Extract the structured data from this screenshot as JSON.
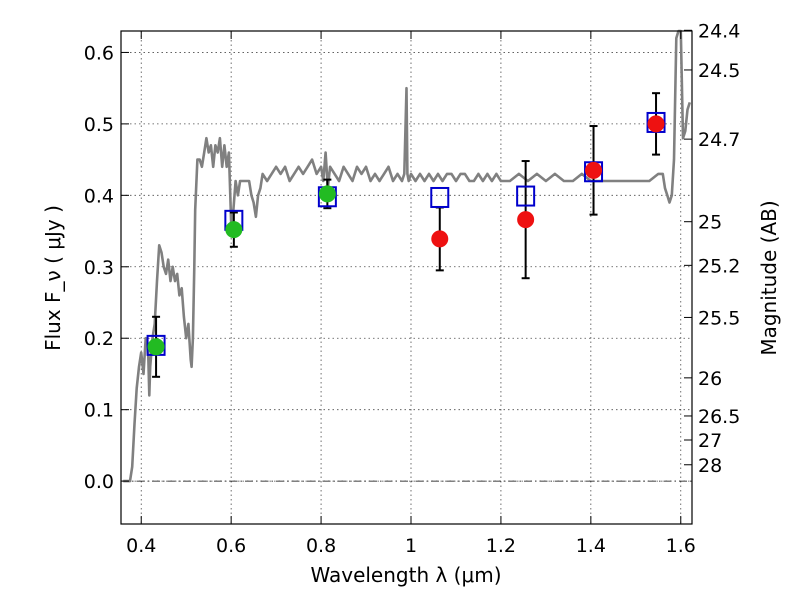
{
  "chart_data": {
    "type": "scatter",
    "title": "",
    "xlabel": "Wavelength  λ (μm)",
    "ylabel": "Flux  F_ν  ( μJy )",
    "ylabel_right": "Magnitude (AB)",
    "xlim": [
      0.355,
      1.625
    ],
    "ylim": [
      -0.06,
      0.63
    ],
    "grid": true,
    "x_ticks": [
      {
        "value": 0.4,
        "label": "0.4"
      },
      {
        "value": 0.6,
        "label": "0.6"
      },
      {
        "value": 0.8,
        "label": "0.8"
      },
      {
        "value": 1.0,
        "label": "1"
      },
      {
        "value": 1.2,
        "label": "1.2"
      },
      {
        "value": 1.4,
        "label": "1.4"
      },
      {
        "value": 1.6,
        "label": "1.6"
      }
    ],
    "y_ticks": [
      {
        "value": 0.0,
        "label": "0.0"
      },
      {
        "value": 0.1,
        "label": "0.1"
      },
      {
        "value": 0.2,
        "label": "0.2"
      },
      {
        "value": 0.3,
        "label": "0.3"
      },
      {
        "value": 0.4,
        "label": "0.4"
      },
      {
        "value": 0.5,
        "label": "0.5"
      },
      {
        "value": 0.6,
        "label": "0.6"
      }
    ],
    "right_ticks": [
      {
        "mag": 24.4,
        "label": "24.4"
      },
      {
        "mag": 24.5,
        "label": "24.5"
      },
      {
        "mag": 24.7,
        "label": "24.7"
      },
      {
        "mag": 25,
        "label": "25"
      },
      {
        "mag": 25.2,
        "label": "25.2"
      },
      {
        "mag": 25.5,
        "label": "25.5"
      },
      {
        "mag": 26,
        "label": "26"
      },
      {
        "mag": 26.5,
        "label": "26.5"
      },
      {
        "mag": 27,
        "label": "27"
      },
      {
        "mag": 28,
        "label": "28"
      }
    ],
    "zero_line": 0.0,
    "colors": {
      "model": "#808080",
      "model_points": "#0000cc",
      "green_points": "#22bb22",
      "red_points": "#ee1111",
      "errorbar": "#000000"
    },
    "model_spectrum": {
      "x": [
        0.36,
        0.375,
        0.38,
        0.385,
        0.39,
        0.395,
        0.4,
        0.405,
        0.41,
        0.415,
        0.418,
        0.42,
        0.425,
        0.43,
        0.435,
        0.44,
        0.445,
        0.45,
        0.455,
        0.46,
        0.465,
        0.47,
        0.475,
        0.48,
        0.485,
        0.49,
        0.495,
        0.5,
        0.505,
        0.51,
        0.512,
        0.515,
        0.518,
        0.52,
        0.525,
        0.53,
        0.535,
        0.54,
        0.545,
        0.55,
        0.555,
        0.56,
        0.565,
        0.57,
        0.575,
        0.58,
        0.585,
        0.59,
        0.595,
        0.6,
        0.605,
        0.61,
        0.615,
        0.62,
        0.63,
        0.64,
        0.645,
        0.65,
        0.655,
        0.66,
        0.665,
        0.67,
        0.68,
        0.69,
        0.7,
        0.71,
        0.72,
        0.73,
        0.74,
        0.75,
        0.76,
        0.77,
        0.78,
        0.79,
        0.8,
        0.805,
        0.81,
        0.815,
        0.82,
        0.83,
        0.84,
        0.85,
        0.86,
        0.87,
        0.88,
        0.89,
        0.9,
        0.91,
        0.92,
        0.93,
        0.94,
        0.95,
        0.96,
        0.97,
        0.98,
        0.985,
        0.99,
        0.992,
        0.995,
        1.0,
        1.01,
        1.02,
        1.03,
        1.04,
        1.05,
        1.06,
        1.07,
        1.08,
        1.09,
        1.1,
        1.11,
        1.12,
        1.13,
        1.14,
        1.15,
        1.16,
        1.17,
        1.18,
        1.19,
        1.2,
        1.22,
        1.24,
        1.26,
        1.28,
        1.3,
        1.32,
        1.34,
        1.36,
        1.38,
        1.4,
        1.42,
        1.44,
        1.46,
        1.48,
        1.5,
        1.52,
        1.53,
        1.55,
        1.56,
        1.565,
        1.57,
        1.575,
        1.58,
        1.585,
        1.59,
        1.595,
        1.6,
        1.605,
        1.61,
        1.615,
        1.62
      ],
      "y": [
        0.0,
        0.0,
        0.02,
        0.08,
        0.13,
        0.16,
        0.18,
        0.15,
        0.2,
        0.19,
        0.12,
        0.16,
        0.2,
        0.22,
        0.28,
        0.33,
        0.32,
        0.3,
        0.29,
        0.31,
        0.28,
        0.3,
        0.28,
        0.29,
        0.26,
        0.27,
        0.23,
        0.2,
        0.22,
        0.17,
        0.16,
        0.2,
        0.3,
        0.38,
        0.45,
        0.45,
        0.44,
        0.46,
        0.48,
        0.46,
        0.47,
        0.44,
        0.47,
        0.46,
        0.48,
        0.44,
        0.47,
        0.44,
        0.46,
        0.36,
        0.38,
        0.42,
        0.4,
        0.42,
        0.42,
        0.42,
        0.4,
        0.39,
        0.37,
        0.4,
        0.41,
        0.43,
        0.42,
        0.43,
        0.44,
        0.43,
        0.44,
        0.42,
        0.43,
        0.44,
        0.43,
        0.44,
        0.45,
        0.43,
        0.44,
        0.42,
        0.46,
        0.41,
        0.44,
        0.43,
        0.42,
        0.44,
        0.43,
        0.42,
        0.44,
        0.43,
        0.44,
        0.42,
        0.43,
        0.42,
        0.43,
        0.44,
        0.42,
        0.43,
        0.42,
        0.43,
        0.55,
        0.43,
        0.42,
        0.43,
        0.42,
        0.43,
        0.42,
        0.43,
        0.42,
        0.43,
        0.42,
        0.43,
        0.43,
        0.42,
        0.43,
        0.43,
        0.42,
        0.42,
        0.43,
        0.42,
        0.43,
        0.42,
        0.43,
        0.42,
        0.42,
        0.43,
        0.42,
        0.43,
        0.42,
        0.43,
        0.42,
        0.42,
        0.43,
        0.42,
        0.42,
        0.42,
        0.42,
        0.42,
        0.42,
        0.42,
        0.42,
        0.43,
        0.43,
        0.41,
        0.4,
        0.39,
        0.4,
        0.45,
        0.62,
        0.63,
        0.63,
        0.48,
        0.49,
        0.52,
        0.53
      ]
    },
    "model_points": {
      "x": [
        0.433,
        0.606,
        0.814,
        1.064,
        1.255,
        1.406,
        1.545
      ],
      "y": [
        0.19,
        0.365,
        0.398,
        0.397,
        0.399,
        0.433,
        0.502
      ]
    },
    "series": [
      {
        "color": "green",
        "x": [
          0.433,
          0.606,
          0.814
        ],
        "y": [
          0.188,
          0.352,
          0.402
        ],
        "yerr": [
          0.042,
          0.024,
          0.02
        ]
      },
      {
        "color": "red",
        "x": [
          1.064,
          1.255,
          1.406,
          1.545
        ],
        "y": [
          0.339,
          0.366,
          0.435,
          0.5
        ],
        "yerr": [
          0.044,
          0.082,
          0.062,
          0.043
        ]
      }
    ]
  }
}
